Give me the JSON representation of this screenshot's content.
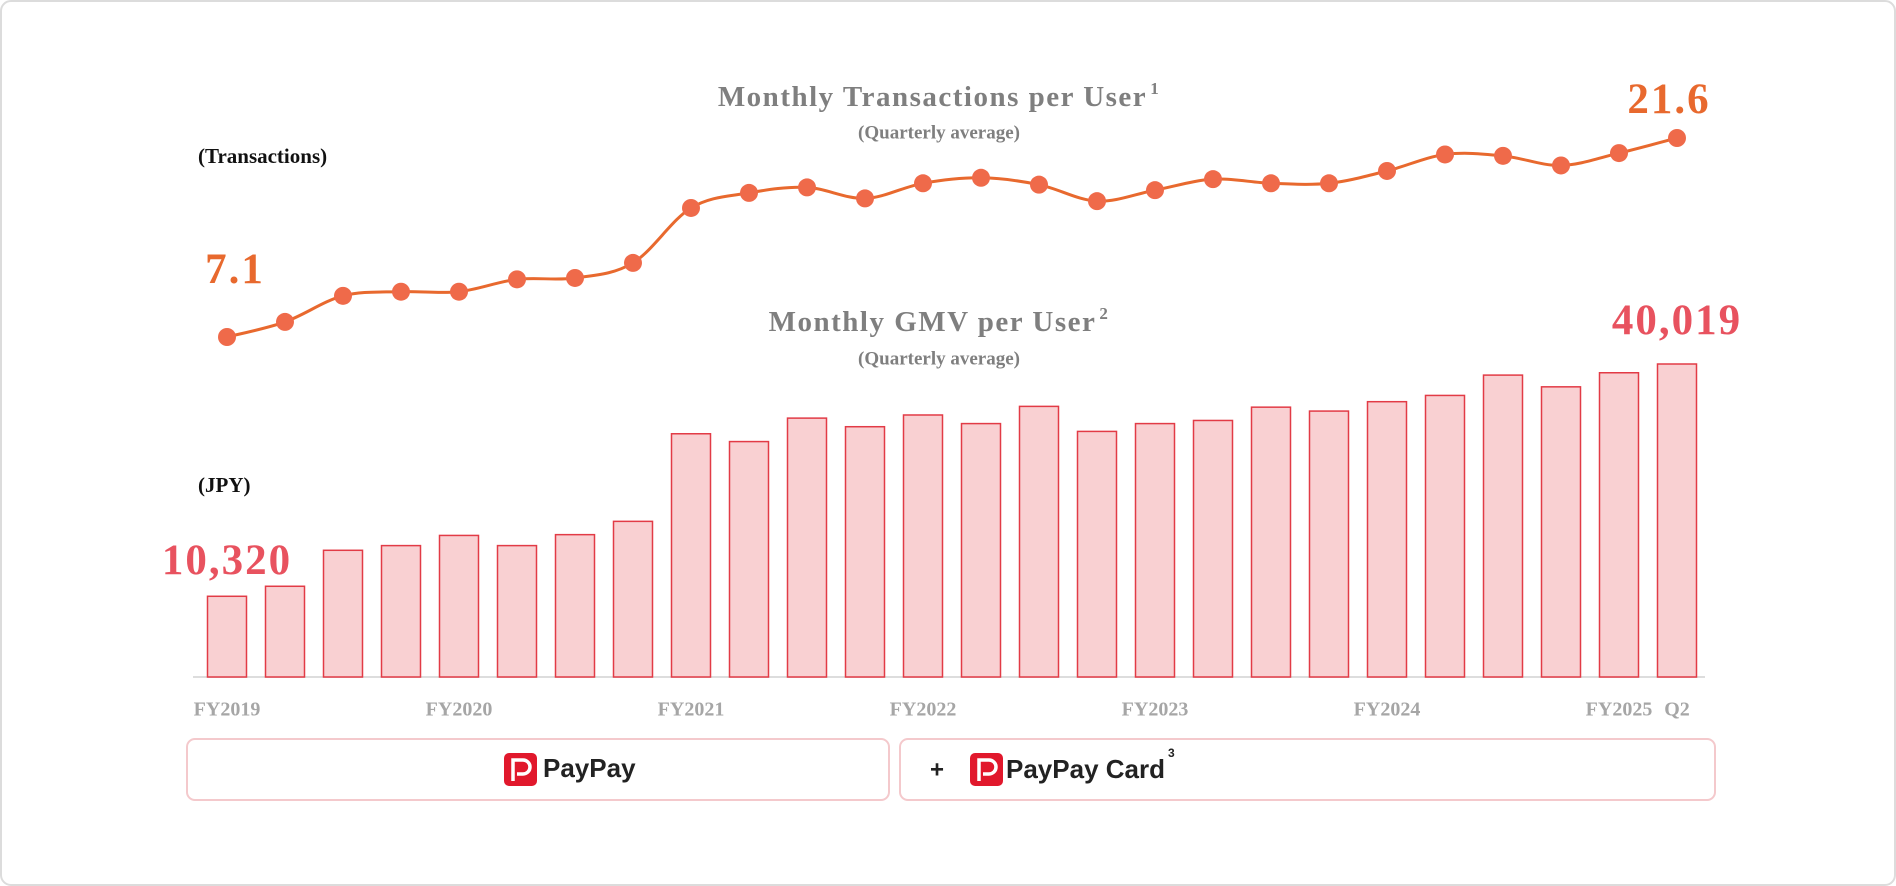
{
  "chart_data": [
    {
      "type": "line",
      "title": "Monthly Transactions per User",
      "title_note": "1",
      "subtitle": "(Quarterly average)",
      "y_label": "(Transactions)",
      "color": "#e8692e",
      "marker_color": "#ef6a4a",
      "values": [
        7.1,
        8.2,
        10.1,
        10.4,
        10.4,
        11.3,
        11.4,
        12.5,
        16.5,
        17.6,
        18.0,
        17.2,
        18.3,
        18.7,
        18.2,
        17.0,
        17.8,
        18.6,
        18.3,
        18.3,
        19.2,
        20.4,
        20.3,
        19.6,
        20.5,
        21.6
      ]
    },
    {
      "type": "bar",
      "title": "Monthly GMV per User",
      "title_note": "2",
      "subtitle": "(Quarterly average)",
      "y_label": "(JPY)",
      "categories": [
        "FY2019",
        null,
        null,
        null,
        "FY2020",
        null,
        null,
        null,
        "FY2021",
        null,
        null,
        null,
        "FY2022",
        null,
        null,
        null,
        "FY2023",
        null,
        null,
        null,
        "FY2024",
        null,
        null,
        null,
        "FY2025",
        "Q2"
      ],
      "values": [
        10320,
        11600,
        16200,
        16800,
        18100,
        16800,
        18200,
        19900,
        31100,
        30100,
        33100,
        32000,
        33500,
        32400,
        34600,
        31400,
        32400,
        32800,
        34500,
        34000,
        35200,
        36000,
        38600,
        37100,
        38900,
        40019
      ],
      "value_labels": [
        "10,320",
        null,
        null,
        null,
        null,
        null,
        null,
        null,
        null,
        null,
        null,
        null,
        null,
        null,
        null,
        null,
        null,
        null,
        null,
        null,
        null,
        null,
        null,
        null,
        null,
        "40,019"
      ],
      "color": "#f9d0d2",
      "edge_color": "#e23b46",
      "label_color": "#e8525f"
    }
  ],
  "footer": {
    "brand": "PayPay",
    "plus": "+",
    "card": "PayPay Card",
    "card_note": "3"
  }
}
